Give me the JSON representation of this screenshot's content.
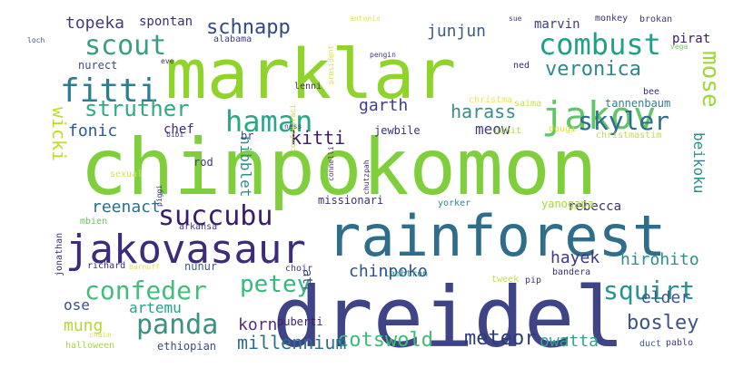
{
  "wordcloud": {
    "words": [
      {
        "text": "chinpokomon",
        "color": "#7fce3b"
      },
      {
        "text": "dreidel",
        "color": "#3f4489"
      },
      {
        "text": "rainforest",
        "color": "#2f6d8d"
      },
      {
        "text": "marklar",
        "color": "#8fd42a"
      },
      {
        "text": "jakovasaur",
        "color": "#3d2b7c"
      },
      {
        "text": "jakov",
        "color": "#60c667"
      },
      {
        "text": "haman",
        "color": "#27a887"
      },
      {
        "text": "combust",
        "color": "#1fa187"
      },
      {
        "text": "fitti",
        "color": "#2c7e8e"
      },
      {
        "text": "scout",
        "color": "#3b9e84"
      },
      {
        "text": "succubu",
        "color": "#3c1b6d"
      },
      {
        "text": "panda",
        "color": "#3a9282"
      },
      {
        "text": "confeder",
        "color": "#43bd7a"
      },
      {
        "text": "squirt",
        "color": "#28938c"
      },
      {
        "text": "skyler",
        "color": "#2d6e8c"
      },
      {
        "text": "petey",
        "color": "#37b87d"
      },
      {
        "text": "mose",
        "color": "#a0d83c"
      },
      {
        "text": "struther",
        "color": "#2fab82"
      },
      {
        "text": "veronica",
        "color": "#2c8a8c"
      },
      {
        "text": "schnapp",
        "color": "#2f4a89"
      },
      {
        "text": "bosley",
        "color": "#3d5389"
      },
      {
        "text": "cotswold",
        "color": "#3fbc73"
      },
      {
        "text": "meteor",
        "color": "#2e3b7b"
      },
      {
        "text": "millennium",
        "color": "#2a6f8e"
      },
      {
        "text": "kitti",
        "color": "#3c1b66"
      },
      {
        "text": "topeka",
        "color": "#453a84"
      },
      {
        "text": "junjun",
        "color": "#3a5d8d"
      },
      {
        "text": "chinpoko",
        "color": "#2d4f8a"
      },
      {
        "text": "korn",
        "color": "#5b2d7e"
      },
      {
        "text": "harass",
        "color": "#3c8c8c"
      },
      {
        "text": "garth",
        "color": "#403d88"
      },
      {
        "text": "wicki",
        "color": "#c5d92a"
      },
      {
        "text": "mung",
        "color": "#b8d63a"
      },
      {
        "text": "reenact",
        "color": "#2a6f8e"
      },
      {
        "text": "fonic",
        "color": "#2d5b8c"
      },
      {
        "text": "hirohito",
        "color": "#2b8f8c"
      },
      {
        "text": "hayek",
        "color": "#3e3a84"
      },
      {
        "text": "elder",
        "color": "#3a5589"
      },
      {
        "text": "meow",
        "color": "#3d3b7f"
      },
      {
        "text": "owatta",
        "color": "#34a287"
      },
      {
        "text": "artemu",
        "color": "#26a386"
      },
      {
        "text": "ose",
        "color": "#3d4f87"
      },
      {
        "text": "atf",
        "color": "#3d4a87"
      },
      {
        "text": "beikoku",
        "color": "#2b8d8c"
      },
      {
        "text": "nibblet",
        "color": "#2f8c8b"
      },
      {
        "text": "spontan",
        "color": "#3d2f79"
      },
      {
        "text": "marvin",
        "color": "#3d3f82"
      },
      {
        "text": "tannenbaum",
        "color": "#2f7f8d"
      },
      {
        "text": "rebecca",
        "color": "#3d2f75"
      },
      {
        "text": "pirat",
        "color": "#3c1b66"
      },
      {
        "text": "nurect",
        "color": "#3f4a86"
      },
      {
        "text": "chef",
        "color": "#3d2b79"
      },
      {
        "text": "jewbile",
        "color": "#38317a"
      },
      {
        "text": "ethiopian",
        "color": "#3b4a86"
      },
      {
        "text": "puberti",
        "color": "#3e1f6a"
      },
      {
        "text": "nunur",
        "color": "#3c5a8a"
      },
      {
        "text": "yanogapa",
        "color": "#a5d63e"
      },
      {
        "text": "richard",
        "color": "#3c2b75"
      },
      {
        "text": "missionari",
        "color": "#3e2f77"
      },
      {
        "text": "yorker",
        "color": "#2e8a8e"
      },
      {
        "text": "arkansa",
        "color": "#4a3a85"
      },
      {
        "text": "mbien",
        "color": "#6cc162"
      },
      {
        "text": "alabama",
        "color": "#3d3a80"
      },
      {
        "text": "br",
        "color": "#3d3f82"
      },
      {
        "text": "rod",
        "color": "#3d3a7e"
      },
      {
        "text": "dougi",
        "color": "#d8e23c"
      },
      {
        "text": "nahit",
        "color": "#b3d64f"
      },
      {
        "text": "christmastim",
        "color": "#c7db4a"
      },
      {
        "text": "christma",
        "color": "#f0e44e"
      },
      {
        "text": "saima",
        "color": "#c6dc55"
      },
      {
        "text": "bee",
        "color": "#3d2f75"
      },
      {
        "text": "ned",
        "color": "#3c2b75"
      },
      {
        "text": "lenni",
        "color": "#3d2f75"
      },
      {
        "text": "president",
        "color": "#d8df42"
      },
      {
        "text": "confederaci",
        "color": "#c6db4a"
      },
      {
        "text": "connelli",
        "color": "#5b2d7e"
      },
      {
        "text": "chutzpah",
        "color": "#3c2b75"
      },
      {
        "text": "antonio",
        "color": "#e6e24e"
      },
      {
        "text": "sue",
        "color": "#4a3a85"
      },
      {
        "text": "monkey",
        "color": "#3e2f77"
      },
      {
        "text": "brokan",
        "color": "#3f3a80"
      },
      {
        "text": "vega",
        "color": "#7aca5a"
      },
      {
        "text": "pengin",
        "color": "#3f3a80"
      },
      {
        "text": "loch",
        "color": "#3c5a8a"
      },
      {
        "text": "eve",
        "color": "#3c2b75"
      },
      {
        "text": "ness",
        "color": "#3c4a86"
      },
      {
        "text": "bibi",
        "color": "#3a3f82"
      },
      {
        "text": "piggi",
        "color": "#3e2f77"
      },
      {
        "text": "sexual",
        "color": "#d2df5a"
      },
      {
        "text": "jonathan",
        "color": "#3c2b75"
      },
      {
        "text": "barnuff",
        "color": "#e6e24e"
      },
      {
        "text": "chaim",
        "color": "#d8e24a"
      },
      {
        "text": "halloween",
        "color": "#a5d63e"
      },
      {
        "text": "choir",
        "color": "#3e3a82"
      },
      {
        "text": "lambtron",
        "color": "#2b8d8c"
      },
      {
        "text": "tweek",
        "color": "#c7db4a"
      },
      {
        "text": "pip",
        "color": "#3d3a80"
      },
      {
        "text": "bandera",
        "color": "#3d2f75"
      },
      {
        "text": "duct",
        "color": "#3c5a8a"
      },
      {
        "text": "pablo",
        "color": "#3d3a80"
      }
    ]
  }
}
